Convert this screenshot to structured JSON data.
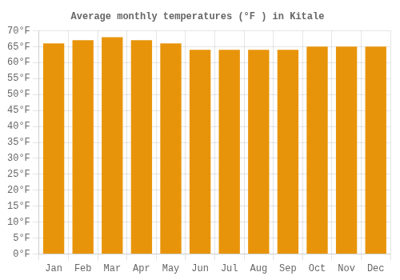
{
  "chart_data": {
    "type": "bar",
    "title": "Average monthly temperatures (°F ) in Kitale",
    "categories": [
      "Jan",
      "Feb",
      "Mar",
      "Apr",
      "May",
      "Jun",
      "Jul",
      "Aug",
      "Sep",
      "Oct",
      "Nov",
      "Dec"
    ],
    "values": [
      66,
      67,
      68,
      67,
      66,
      64,
      64,
      64,
      64,
      65,
      65,
      65
    ],
    "color": "#E8940A",
    "ylim": [
      0,
      70
    ],
    "yticks": [
      {
        "value": 0,
        "label": "0°F"
      },
      {
        "value": 5,
        "label": "5°F"
      },
      {
        "value": 10,
        "label": "10°F"
      },
      {
        "value": 15,
        "label": "15°F"
      },
      {
        "value": 20,
        "label": "20°F"
      },
      {
        "value": 25,
        "label": "25°F"
      },
      {
        "value": 30,
        "label": "30°F"
      },
      {
        "value": 35,
        "label": "35°F"
      },
      {
        "value": 40,
        "label": "40°F"
      },
      {
        "value": 45,
        "label": "45°F"
      },
      {
        "value": 50,
        "label": "50°F"
      },
      {
        "value": 55,
        "label": "55°F"
      },
      {
        "value": 60,
        "label": "60°F"
      },
      {
        "value": 65,
        "label": "65°F"
      },
      {
        "value": 70,
        "label": "70°F"
      }
    ],
    "grid": true
  }
}
